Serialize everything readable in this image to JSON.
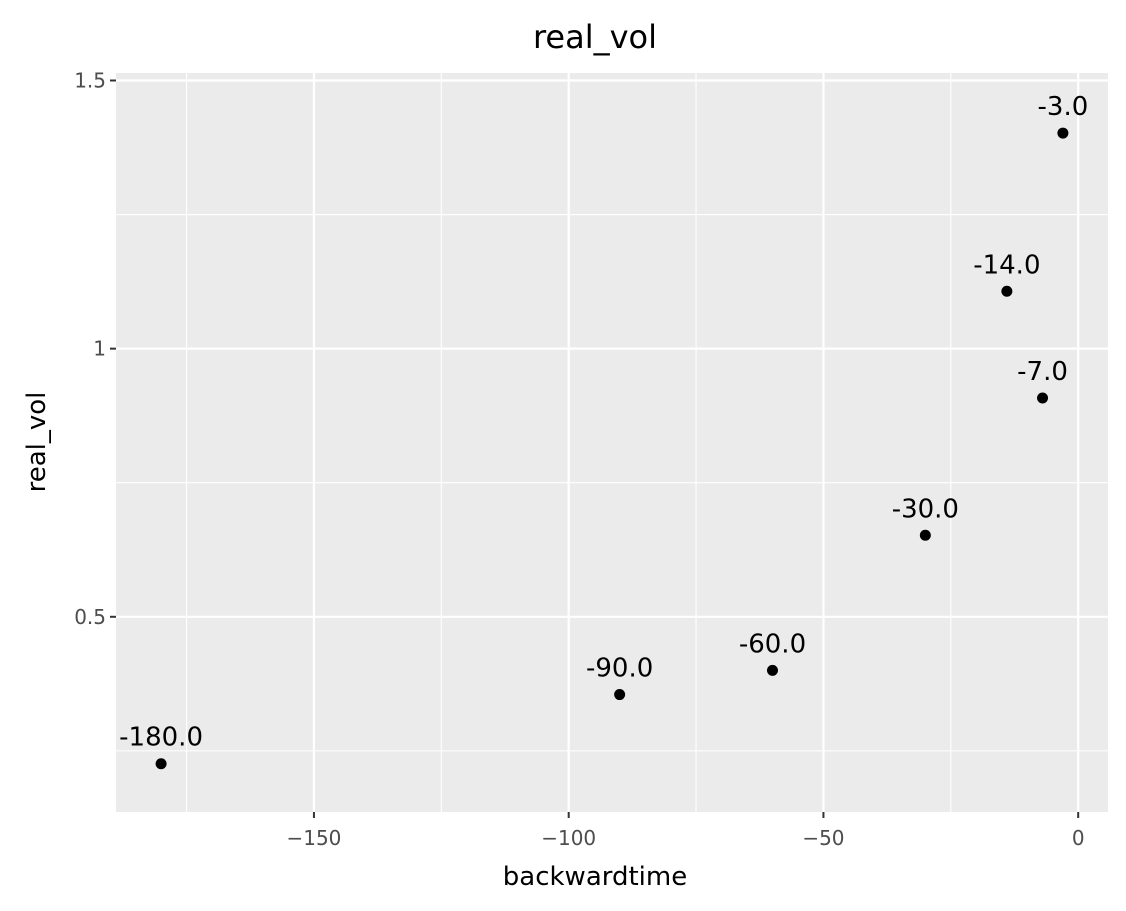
{
  "chart_data": {
    "type": "scatter",
    "title": "real_vol",
    "xlabel": "backwardtime",
    "ylabel": "real_vol",
    "xlim": [
      -188.85,
      5.85
    ],
    "ylim": [
      0.136,
      1.514
    ],
    "x_ticks": [
      -150,
      -100,
      -50,
      0
    ],
    "x_tick_labels": [
      "−150",
      "−100",
      "−50",
      "0"
    ],
    "y_ticks": [
      0.5,
      1,
      1.5
    ],
    "y_tick_labels": [
      "0.5",
      "1",
      "1.5"
    ],
    "grid": true,
    "panel_background": "#ebebeb",
    "grid_color": "#ffffff",
    "point_color": "#000000",
    "points": [
      {
        "x": -180,
        "y": 0.226,
        "label": "-180.0"
      },
      {
        "x": -90,
        "y": 0.355,
        "label": "-90.0"
      },
      {
        "x": -60,
        "y": 0.4,
        "label": "-60.0"
      },
      {
        "x": -30,
        "y": 0.652,
        "label": "-30.0"
      },
      {
        "x": -14,
        "y": 1.107,
        "label": "-14.0"
      },
      {
        "x": -7,
        "y": 0.908,
        "label": "-7.0"
      },
      {
        "x": -3,
        "y": 1.402,
        "label": "-3.0"
      }
    ]
  }
}
